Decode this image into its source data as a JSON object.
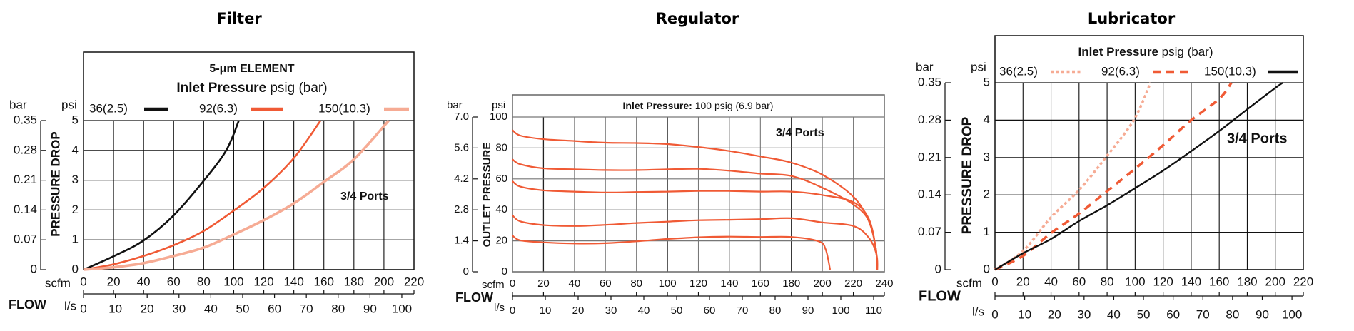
{
  "chart_data": [
    {
      "type": "line",
      "title": "Filter",
      "header": "5-μm ELEMENT",
      "legend_title_bold": "Inlet Pressure",
      "legend_title_rest": " psig (bar)",
      "note": "3/4 Ports",
      "ylabel": "PRESSURE DROP",
      "y_units": [
        "bar",
        "psi"
      ],
      "xlabel": "FLOW",
      "x_units": [
        "scfm",
        "l/s"
      ],
      "xlim": [
        0,
        220
      ],
      "ylim": [
        0,
        5
      ],
      "grid": true,
      "bar_ticks": [
        "0",
        "0.07",
        "0.14",
        "0.21",
        "0.28",
        "0.35"
      ],
      "psi_ticks": [
        "0",
        "1",
        "2",
        "3",
        "4",
        "5"
      ],
      "scfm_ticks": [
        "0",
        "20",
        "40",
        "60",
        "80",
        "100",
        "120",
        "140",
        "160",
        "180",
        "200",
        "220"
      ],
      "ls_ticks": [
        "0",
        "10",
        "20",
        "30",
        "40",
        "50",
        "60",
        "70",
        "80",
        "90",
        "100"
      ],
      "series": [
        {
          "name": "36(2.5)",
          "color": "#111111",
          "style": "solid",
          "points": [
            [
              0,
              0
            ],
            [
              20,
              0.45
            ],
            [
              40,
              0.98
            ],
            [
              60,
              1.82
            ],
            [
              80,
              2.98
            ],
            [
              95,
              4.0
            ],
            [
              103.4,
              5
            ]
          ]
        },
        {
          "name": "92(6.3)",
          "color": "#f05a35",
          "style": "solid",
          "points": [
            [
              0,
              0
            ],
            [
              20,
              0.18
            ],
            [
              40,
              0.46
            ],
            [
              60,
              0.82
            ],
            [
              80,
              1.3
            ],
            [
              100,
              1.98
            ],
            [
              120,
              2.74
            ],
            [
              140,
              3.74
            ],
            [
              157.8,
              5
            ]
          ]
        },
        {
          "name": "150(10.3)",
          "color": "#f6ab94",
          "style": "solid",
          "points": [
            [
              0,
              0
            ],
            [
              20,
              0.08
            ],
            [
              40,
              0.22
            ],
            [
              60,
              0.46
            ],
            [
              80,
              0.74
            ],
            [
              100,
              1.18
            ],
            [
              120,
              1.66
            ],
            [
              140,
              2.22
            ],
            [
              160,
              2.94
            ],
            [
              180,
              3.7
            ],
            [
              203.2,
              5
            ]
          ]
        }
      ]
    },
    {
      "type": "line",
      "title": "Regulator",
      "legend_title_bold": "Inlet Pressure:",
      "legend_title_rest": " 100 psig (6.9 bar)",
      "note": "3/4 Ports",
      "ylabel": "OUTLET PRESSURE",
      "y_units": [
        "bar",
        "psi"
      ],
      "xlabel": "FLOW",
      "x_units": [
        "scfm",
        "l/s"
      ],
      "xlim": [
        0,
        240
      ],
      "ylim": [
        0,
        100
      ],
      "grid": true,
      "bar_ticks": [
        "0",
        "1.4",
        "2.8",
        "4.2",
        "5.6",
        "7.0"
      ],
      "psi_ticks": [
        "0",
        "20",
        "40",
        "60",
        "80",
        "100"
      ],
      "scfm_ticks": [
        "0",
        "20",
        "40",
        "60",
        "80",
        "100",
        "120",
        "140",
        "160",
        "180",
        "200",
        "220",
        "240"
      ],
      "ls_ticks": [
        "0",
        "10",
        "20",
        "30",
        "40",
        "50",
        "60",
        "70",
        "80",
        "90",
        "100",
        "110"
      ],
      "series": [
        {
          "color": "#f05a35",
          "style": "solid",
          "points": [
            [
              0,
              91.5
            ],
            [
              5,
              88
            ],
            [
              20,
              85.7
            ],
            [
              40,
              84.5
            ],
            [
              60,
              83.4
            ],
            [
              80,
              83.2
            ],
            [
              100,
              82.5
            ],
            [
              120,
              80.6
            ],
            [
              140,
              78
            ],
            [
              160,
              74.5
            ],
            [
              180,
              70.5
            ],
            [
              200,
              62.7
            ],
            [
              220,
              48.5
            ],
            [
              230,
              32.7
            ],
            [
              234.5,
              15
            ],
            [
              235.3,
              1
            ]
          ]
        },
        {
          "color": "#f05a35",
          "style": "solid",
          "points": [
            [
              0,
              72.6
            ],
            [
              5,
              69.5
            ],
            [
              20,
              66.8
            ],
            [
              40,
              66.2
            ],
            [
              60,
              65.7
            ],
            [
              80,
              65.7
            ],
            [
              100,
              66.2
            ],
            [
              120,
              66.5
            ],
            [
              140,
              65.3
            ],
            [
              160,
              63.4
            ],
            [
              180,
              61.9
            ],
            [
              200,
              54.3
            ],
            [
              220,
              43.5
            ],
            [
              230,
              33
            ],
            [
              234.5,
              15
            ],
            [
              235.3,
              1
            ]
          ]
        },
        {
          "color": "#f05a35",
          "style": "solid",
          "points": [
            [
              0,
              58.5
            ],
            [
              5,
              55
            ],
            [
              20,
              52.6
            ],
            [
              40,
              51.8
            ],
            [
              60,
              51.2
            ],
            [
              80,
              51.5
            ],
            [
              100,
              51.8
            ],
            [
              120,
              52.2
            ],
            [
              140,
              52.2
            ],
            [
              160,
              51.8
            ],
            [
              180,
              51.8
            ],
            [
              200,
              49.6
            ],
            [
              220,
              45
            ],
            [
              230,
              34.2
            ],
            [
              234.5,
              15
            ],
            [
              235.3,
              1
            ]
          ]
        },
        {
          "color": "#f05a35",
          "style": "solid",
          "points": [
            [
              0,
              36.5
            ],
            [
              5,
              32.6
            ],
            [
              20,
              30.2
            ],
            [
              40,
              29.6
            ],
            [
              60,
              30.3
            ],
            [
              80,
              31.5
            ],
            [
              100,
              32.4
            ],
            [
              120,
              33.3
            ],
            [
              140,
              33.6
            ],
            [
              160,
              34
            ],
            [
              180,
              34.6
            ],
            [
              200,
              31.9
            ],
            [
              220,
              29.6
            ],
            [
              230,
              22
            ],
            [
              235,
              11
            ],
            [
              235.5,
              1
            ]
          ]
        },
        {
          "color": "#f05a35",
          "style": "solid",
          "points": [
            [
              0,
              23.4
            ],
            [
              5,
              20.3
            ],
            [
              20,
              19
            ],
            [
              40,
              18.3
            ],
            [
              60,
              18.5
            ],
            [
              80,
              19.7
            ],
            [
              100,
              21.2
            ],
            [
              120,
              22.3
            ],
            [
              140,
              22.7
            ],
            [
              160,
              22.5
            ],
            [
              180,
              22.5
            ],
            [
              197.6,
              19.7
            ],
            [
              202.2,
              14.3
            ],
            [
              205,
              1.4
            ]
          ]
        }
      ]
    },
    {
      "type": "line",
      "title": "Lubricator",
      "legend_title_bold": "Inlet Pressure",
      "legend_title_rest": " psig (bar)",
      "note": "3/4 Ports",
      "ylabel": "PRESSURE DROP",
      "y_units": [
        "bar",
        "psi"
      ],
      "xlabel": "FLOW",
      "x_units": [
        "scfm",
        "l/s"
      ],
      "xlim": [
        0,
        220
      ],
      "ylim": [
        0,
        5
      ],
      "grid": true,
      "bar_ticks": [
        "0",
        "0.07",
        "0.14",
        "0.21",
        "0.28",
        "0.35"
      ],
      "psi_ticks": [
        "0",
        "1",
        "2",
        "3",
        "4",
        "5"
      ],
      "scfm_ticks": [
        "0",
        "20",
        "40",
        "60",
        "80",
        "100",
        "120",
        "140",
        "160",
        "180",
        "200",
        "220"
      ],
      "ls_ticks": [
        "0",
        "10",
        "20",
        "30",
        "40",
        "50",
        "60",
        "70",
        "80",
        "90",
        "100"
      ],
      "series": [
        {
          "name": "36(2.5)",
          "color": "#f6ab94",
          "style": "dotted",
          "points": [
            [
              0,
              0
            ],
            [
              20,
              0.5
            ],
            [
              40,
              1.4
            ],
            [
              60,
              2.13
            ],
            [
              79,
              3
            ],
            [
              99,
              4
            ],
            [
              111,
              5
            ]
          ]
        },
        {
          "name": "92(6.3)",
          "color": "#f05a35",
          "style": "dashed",
          "points": [
            [
              0,
              0
            ],
            [
              20,
              0.37
            ],
            [
              40,
              0.98
            ],
            [
              60,
              1.5
            ],
            [
              80,
              2.1
            ],
            [
              100,
              2.7
            ],
            [
              120,
              3.33
            ],
            [
              140,
              4.0
            ],
            [
              160,
              4.57
            ],
            [
              168.7,
              5
            ]
          ]
        },
        {
          "name": "150(10.3)",
          "color": "#111111",
          "style": "solid",
          "points": [
            [
              0,
              0
            ],
            [
              20,
              0.44
            ],
            [
              40,
              0.82
            ],
            [
              60,
              1.3
            ],
            [
              80,
              1.72
            ],
            [
              100,
              2.18
            ],
            [
              120,
              2.65
            ],
            [
              140,
              3.17
            ],
            [
              160,
              3.71
            ],
            [
              180,
              4.29
            ],
            [
              200,
              4.86
            ],
            [
              205.3,
              5
            ]
          ]
        }
      ]
    }
  ]
}
